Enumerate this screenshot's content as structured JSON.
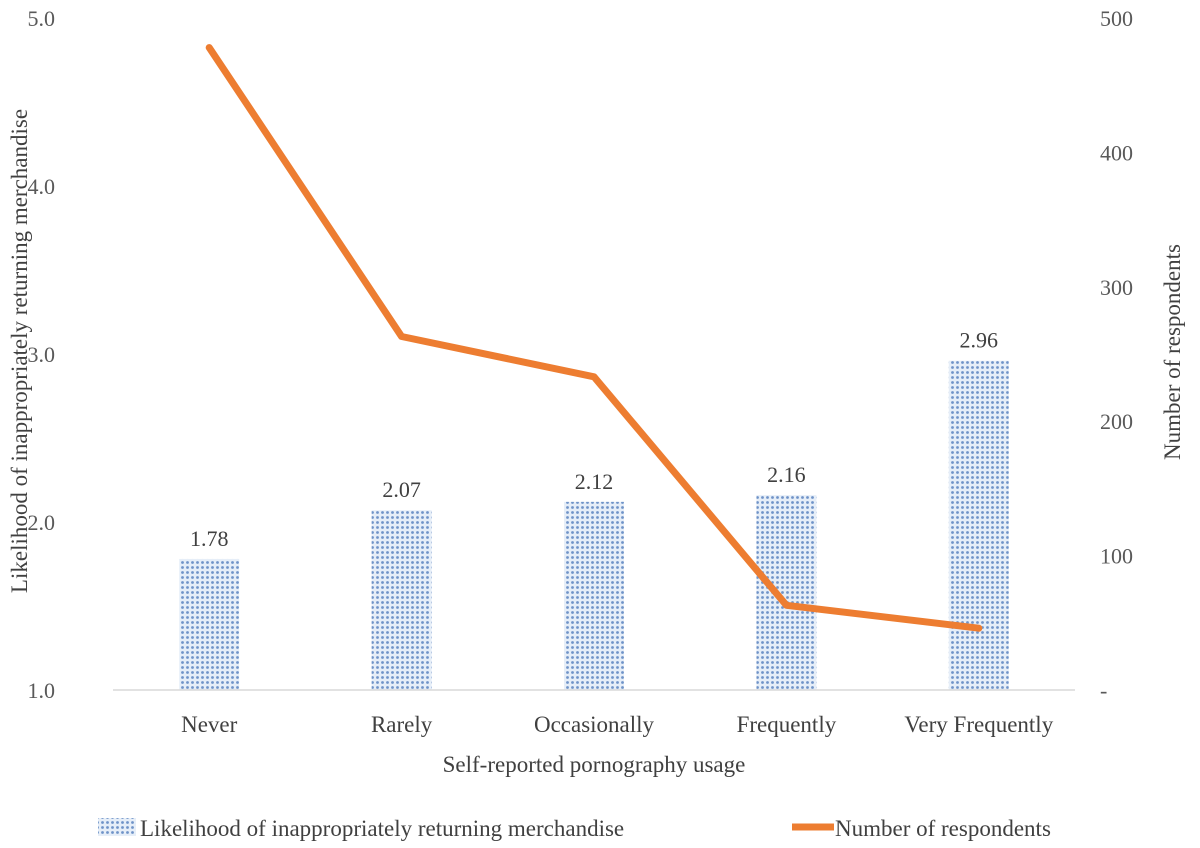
{
  "chart_data": {
    "type": "bar",
    "categories": [
      "Never",
      "Rarely",
      "Occasionally",
      "Frequently",
      "Very Frequently"
    ],
    "xlabel": "Self-reported pornography usage",
    "ylabel": "Likelihood of inappropriately returning merchandise",
    "y2label": "Number of respondents",
    "ylim": [
      1.0,
      5.0
    ],
    "yticks": [
      "1.0",
      "2.0",
      "3.0",
      "4.0",
      "5.0"
    ],
    "ytick_values": [
      1.0,
      2.0,
      3.0,
      4.0,
      5.0
    ],
    "y2lim": [
      0,
      500
    ],
    "y2ticks": [
      "-",
      "100",
      "200",
      "300",
      "400",
      "500"
    ],
    "y2tick_values": [
      0,
      100,
      200,
      300,
      400,
      500
    ],
    "series": [
      {
        "name": "Likelihood of inappropriately returning merchandise",
        "type": "bar",
        "axis": "left",
        "values": [
          1.78,
          2.07,
          2.12,
          2.16,
          2.96
        ],
        "labels": [
          "1.78",
          "2.07",
          "2.12",
          "2.16",
          "2.96"
        ],
        "color": "#8FAADC"
      },
      {
        "name": "Number of respondents",
        "type": "line",
        "axis": "right",
        "values": [
          478,
          263,
          233,
          63,
          46
        ],
        "color": "#ED7D31"
      }
    ],
    "legend_position": "bottom",
    "grid": false
  }
}
